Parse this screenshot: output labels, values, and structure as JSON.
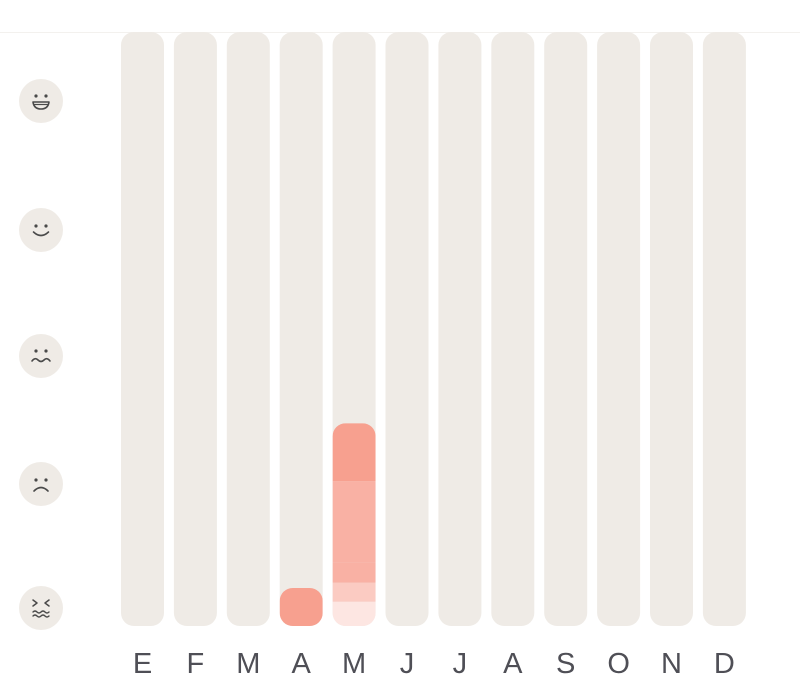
{
  "colors": {
    "track": "#efebe6",
    "face_bg": "#efebe6",
    "face_stroke": "#4a4a4a",
    "label": "#4f4f56",
    "bar_strong": "#f7a08f",
    "bar_medium": "#f9b1a4",
    "bar_light": "#fbcbc2",
    "bar_faint": "#fde6e2"
  },
  "mood_axis": {
    "levels": [
      {
        "icon": "grinning-face-icon",
        "mood": 5
      },
      {
        "icon": "smiling-face-icon",
        "mood": 4
      },
      {
        "icon": "wavy-mouth-face-icon",
        "mood": 3
      },
      {
        "icon": "frowning-face-icon",
        "mood": 2
      },
      {
        "icon": "distressed-face-icon",
        "mood": 1
      }
    ]
  },
  "chart_data": {
    "type": "bar",
    "categories": [
      "E",
      "F",
      "M",
      "A",
      "M",
      "J",
      "J",
      "A",
      "S",
      "O",
      "N",
      "D"
    ],
    "y_axis": "mood icons (1 = lowest, 5 = highest)",
    "ylim": [
      1,
      5
    ],
    "grid": false,
    "series": [
      {
        "values": [
          null,
          null,
          null,
          1,
          2.3,
          null,
          null,
          null,
          null,
          null,
          null,
          null
        ]
      }
    ],
    "month_stacks": [
      {
        "month_index": 3,
        "segments": [
          {
            "from": 1,
            "to": 1,
            "tone": "strong"
          }
        ]
      },
      {
        "month_index": 4,
        "segments": [
          {
            "from": 1,
            "to": 1.05,
            "tone": "faint"
          },
          {
            "from": 1.05,
            "to": 1.2,
            "tone": "light"
          },
          {
            "from": 1.2,
            "to": 1.36,
            "tone": "medium"
          },
          {
            "from": 1.36,
            "to": 2.0,
            "tone": "medium"
          },
          {
            "from": 2.0,
            "to": 2.3,
            "tone": "strong"
          }
        ]
      }
    ]
  }
}
